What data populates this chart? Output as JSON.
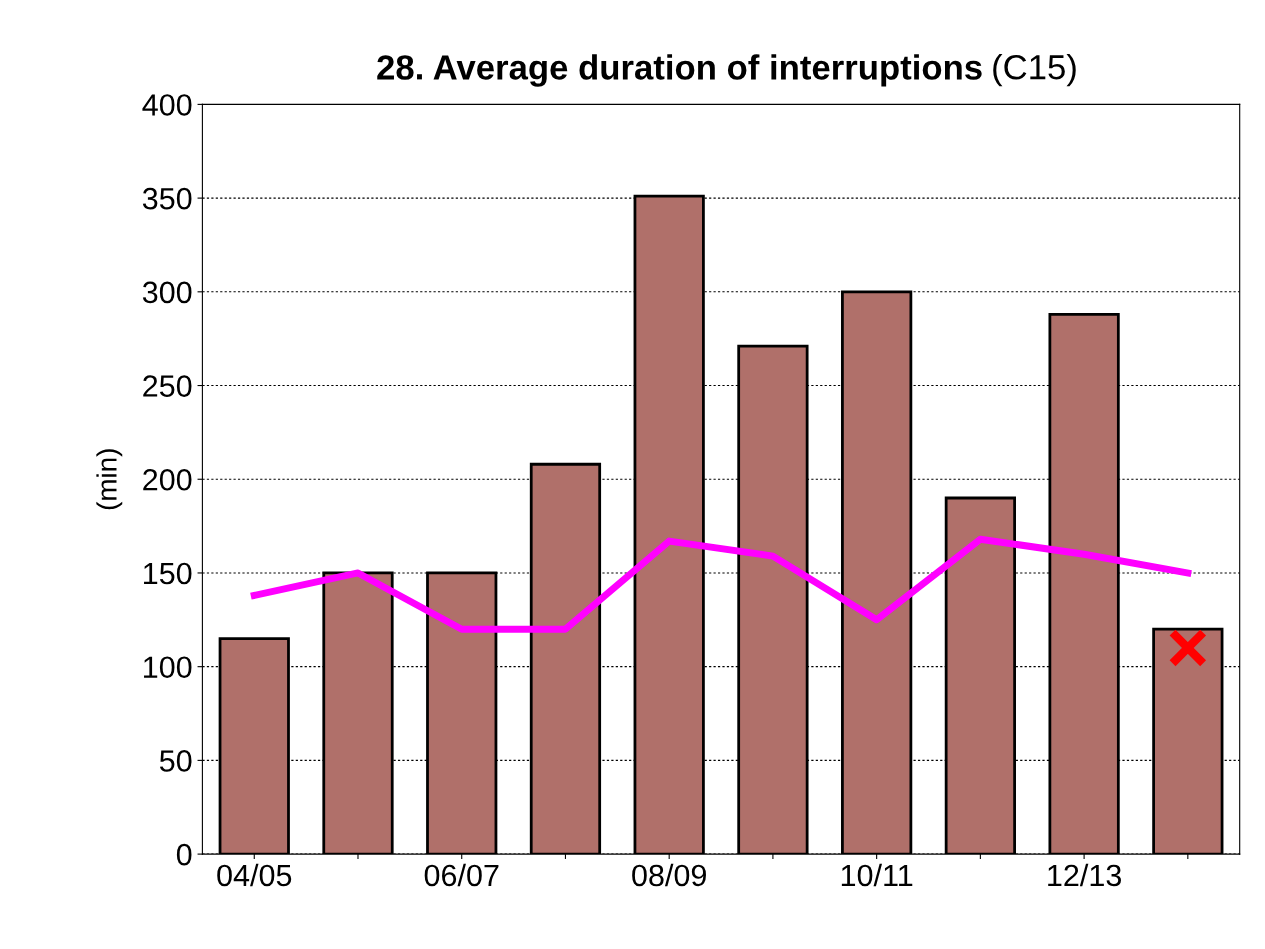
{
  "chart_data": {
    "type": "bar",
    "title": "28. Average duration of interruptions",
    "subtitle": "(C15)",
    "ylabel": "(min)",
    "categories": [
      "04/05",
      null,
      "06/07",
      null,
      "08/09",
      null,
      "10/11",
      null,
      "12/13",
      null
    ],
    "series": [
      {
        "color": "#b0706a",
        "values": [
          115,
          150,
          150,
          208,
          351,
          271,
          300,
          190,
          288,
          120
        ]
      },
      {
        "type": "line",
        "color": "#ff00ff",
        "values": [
          138,
          150,
          120,
          120,
          167,
          159,
          125,
          168,
          160,
          150
        ]
      },
      {
        "type": "scatter",
        "color": "#ff0000",
        "marker": "cross",
        "values": [
          null,
          null,
          null,
          null,
          null,
          null,
          null,
          null,
          null,
          110
        ]
      }
    ],
    "ylim": [
      0,
      400
    ],
    "yticks": [
      0,
      50,
      100,
      150,
      200,
      250,
      300,
      350,
      400
    ],
    "grid": "y",
    "legend": false
  }
}
